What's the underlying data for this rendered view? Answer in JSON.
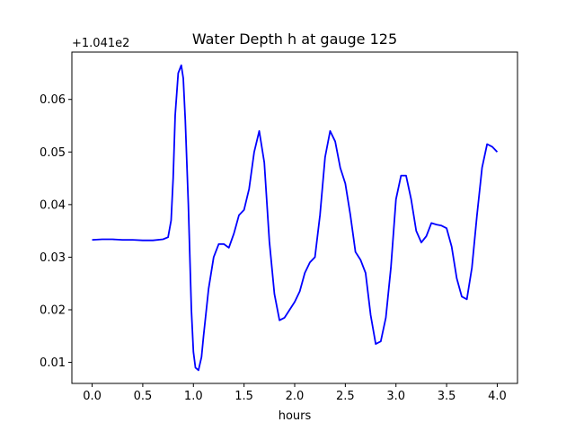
{
  "chart_data": {
    "type": "line",
    "title": "Water Depth h at gauge 125",
    "xlabel": "hours",
    "ylabel": "",
    "offset_label": "+1.041e2",
    "xlim": [
      -0.2,
      4.2
    ],
    "ylim": [
      0.006,
      0.069
    ],
    "xticks": [
      0.0,
      0.5,
      1.0,
      1.5,
      2.0,
      2.5,
      3.0,
      3.5,
      4.0
    ],
    "xtick_labels": [
      "0.0",
      "0.5",
      "1.0",
      "1.5",
      "2.0",
      "2.5",
      "3.0",
      "3.5",
      "4.0"
    ],
    "yticks": [
      0.01,
      0.02,
      0.03,
      0.04,
      0.05,
      0.06
    ],
    "ytick_labels": [
      "0.01",
      "0.02",
      "0.03",
      "0.04",
      "0.05",
      "0.06"
    ],
    "grid": false,
    "legend": "none",
    "colors": {
      "line": "#0000ff",
      "axes": "#000000",
      "background": "#ffffff"
    },
    "series": [
      {
        "x": [
          0.0,
          0.1,
          0.2,
          0.3,
          0.4,
          0.5,
          0.6,
          0.7,
          0.75,
          0.78,
          0.8,
          0.82,
          0.85,
          0.88,
          0.9,
          0.92,
          0.95,
          0.98,
          1.0,
          1.02,
          1.05,
          1.08,
          1.1,
          1.15,
          1.2,
          1.25,
          1.3,
          1.35,
          1.4,
          1.45,
          1.5,
          1.55,
          1.6,
          1.65,
          1.7,
          1.75,
          1.8,
          1.85,
          1.9,
          1.95,
          2.0,
          2.05,
          2.1,
          2.15,
          2.2,
          2.25,
          2.3,
          2.35,
          2.4,
          2.45,
          2.5,
          2.55,
          2.6,
          2.65,
          2.7,
          2.75,
          2.8,
          2.85,
          2.9,
          2.95,
          3.0,
          3.05,
          3.1,
          3.15,
          3.2,
          3.25,
          3.3,
          3.35,
          3.4,
          3.45,
          3.5,
          3.55,
          3.6,
          3.65,
          3.7,
          3.75,
          3.8,
          3.85,
          3.9,
          3.95,
          4.0
        ],
        "y": [
          0.0333,
          0.0334,
          0.0334,
          0.0333,
          0.0333,
          0.0332,
          0.0332,
          0.0334,
          0.0338,
          0.037,
          0.045,
          0.057,
          0.065,
          0.0665,
          0.064,
          0.056,
          0.04,
          0.02,
          0.012,
          0.009,
          0.0085,
          0.011,
          0.015,
          0.024,
          0.03,
          0.0325,
          0.0325,
          0.0318,
          0.0345,
          0.038,
          0.039,
          0.043,
          0.05,
          0.054,
          0.048,
          0.033,
          0.023,
          0.018,
          0.0185,
          0.02,
          0.0215,
          0.0235,
          0.027,
          0.029,
          0.03,
          0.038,
          0.049,
          0.054,
          0.052,
          0.047,
          0.044,
          0.038,
          0.031,
          0.0295,
          0.027,
          0.019,
          0.0135,
          0.014,
          0.0185,
          0.028,
          0.041,
          0.0455,
          0.0455,
          0.041,
          0.035,
          0.0328,
          0.034,
          0.0365,
          0.0362,
          0.036,
          0.0355,
          0.032,
          0.026,
          0.0225,
          0.022,
          0.028,
          0.038,
          0.047,
          0.0515,
          0.051,
          0.05
        ]
      }
    ]
  }
}
